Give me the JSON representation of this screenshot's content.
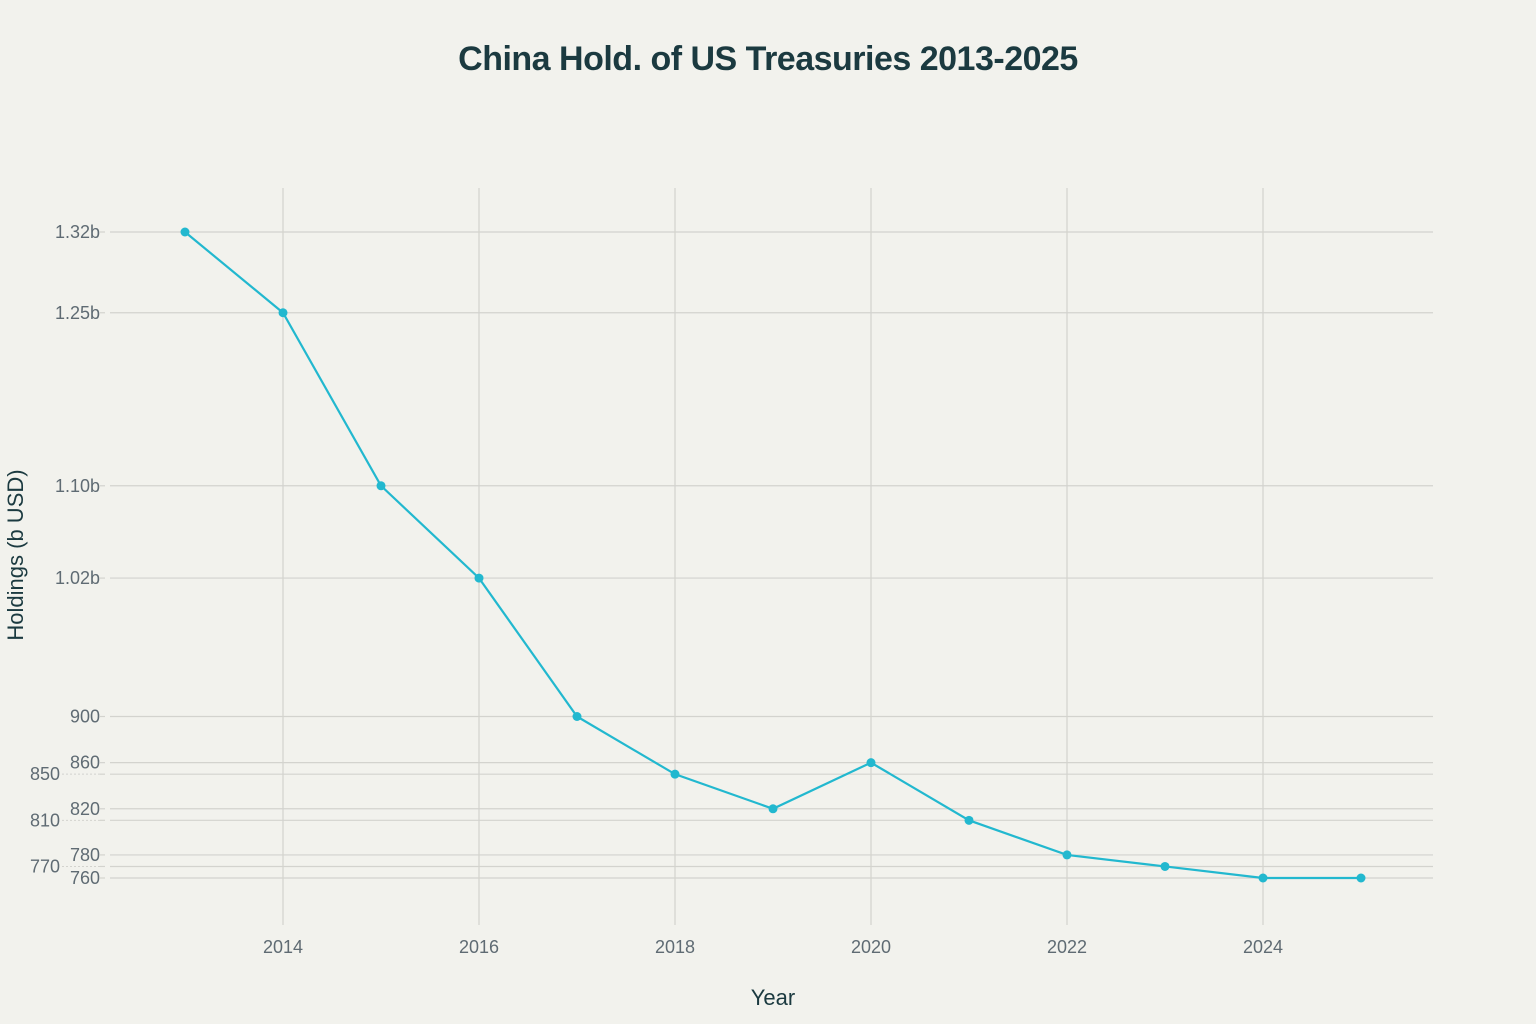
{
  "chart_data": {
    "type": "line",
    "title": "China Hold. of US Treasuries 2013-2025",
    "xlabel": "Year",
    "ylabel": "Holdings (b USD)",
    "x": [
      2013,
      2014,
      2015,
      2016,
      2017,
      2018,
      2019,
      2020,
      2021,
      2022,
      2023,
      2024,
      2025
    ],
    "values": [
      1320,
      1250,
      1100,
      1020,
      900,
      850,
      820,
      860,
      810,
      780,
      770,
      760,
      760
    ],
    "xticks": [
      2014,
      2016,
      2018,
      2020,
      2022,
      2024
    ],
    "xtick_labels": [
      "2014",
      "2016",
      "2018",
      "2020",
      "2022",
      "2024"
    ],
    "yticks": [
      1320,
      1250,
      1100,
      1020,
      900,
      860,
      850,
      820,
      810,
      780,
      770,
      760
    ],
    "ytick_labels": [
      "1.32b",
      "1.25b",
      "1.10b",
      "1.02b",
      "900",
      "860",
      "850",
      "820",
      "810",
      "780",
      "770",
      "760"
    ],
    "xlim": [
      2012.3,
      2025.75
    ],
    "ylim": [
      720,
      1358
    ],
    "grid": true,
    "line_color": "#22b8cf",
    "markers": true
  }
}
